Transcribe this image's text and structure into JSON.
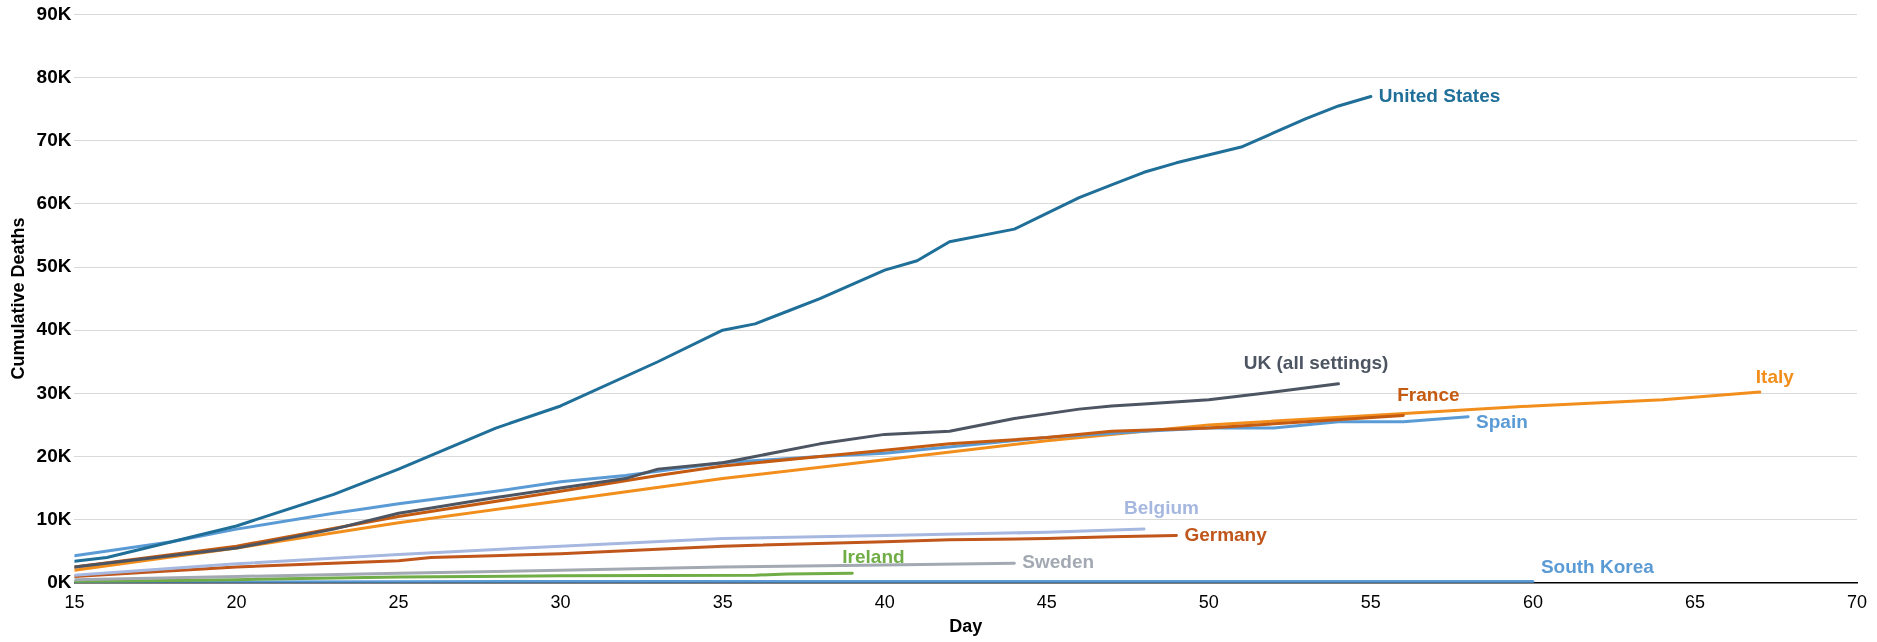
{
  "chart_data": {
    "type": "line",
    "xlabel": "Day",
    "ylabel": "Cumulative Deaths",
    "xlim": [
      15,
      70
    ],
    "xticks": [
      15,
      20,
      25,
      30,
      35,
      40,
      45,
      50,
      55,
      60,
      65,
      70
    ],
    "ylim": [
      0,
      90000
    ],
    "yticks": [
      {
        "value": 0,
        "label": "0K"
      },
      {
        "value": 10000,
        "label": "10K"
      },
      {
        "value": 20000,
        "label": "20K"
      },
      {
        "value": 30000,
        "label": "30K"
      },
      {
        "value": 40000,
        "label": "40K"
      },
      {
        "value": 50000,
        "label": "50K"
      },
      {
        "value": 60000,
        "label": "60K"
      },
      {
        "value": 70000,
        "label": "70K"
      },
      {
        "value": 80000,
        "label": "80K"
      },
      {
        "value": 90000,
        "label": "90K"
      }
    ],
    "grid": "y",
    "legend": false,
    "marker": "none",
    "line_style": "solid",
    "series": [
      {
        "name": "United States",
        "color": "#1f6f99",
        "x": [
          15,
          16,
          18,
          20,
          23,
          25,
          28,
          30,
          33,
          35,
          36,
          37,
          38,
          40,
          41,
          42,
          44,
          45,
          46,
          47,
          48,
          49,
          51,
          53,
          54,
          55
        ],
        "values": [
          3400,
          4000,
          6500,
          9000,
          14000,
          18000,
          24500,
          28000,
          35000,
          40000,
          41000,
          43000,
          45000,
          49500,
          51000,
          54000,
          56000,
          58500,
          61000,
          63000,
          65000,
          66500,
          69000,
          73500,
          75500,
          77000
        ]
      },
      {
        "name": "UK (all settings)",
        "color": "#4d5562",
        "x": [
          15,
          20,
          23,
          25,
          28,
          30,
          32,
          33,
          35,
          36,
          38,
          40,
          42,
          44,
          46,
          47,
          48,
          50,
          52,
          54
        ],
        "values": [
          2500,
          5500,
          8500,
          11000,
          13500,
          15000,
          16500,
          18000,
          19000,
          20000,
          22000,
          23500,
          24000,
          26000,
          27500,
          28000,
          28300,
          29000,
          30200,
          31500
        ]
      },
      {
        "name": "France",
        "color": "#c55a11",
        "x": [
          15,
          20,
          25,
          30,
          33,
          35,
          38,
          40,
          42,
          45,
          47,
          50,
          53,
          56
        ],
        "values": [
          2500,
          5800,
          10500,
          14500,
          17000,
          18500,
          20000,
          21000,
          22000,
          23000,
          24000,
          24500,
          25500,
          26500
        ]
      },
      {
        "name": "Spain",
        "color": "#5b9bd5",
        "x": [
          15,
          18,
          20,
          23,
          25,
          28,
          30,
          32,
          35,
          38,
          40,
          43,
          45,
          48,
          50,
          52,
          54,
          56,
          58
        ],
        "values": [
          4300,
          6500,
          8500,
          11000,
          12500,
          14500,
          16000,
          17000,
          19000,
          20000,
          20500,
          22000,
          23000,
          24000,
          24500,
          24500,
          25500,
          25500,
          26300
        ]
      },
      {
        "name": "Italy",
        "color": "#f28e1c",
        "x": [
          15,
          20,
          25,
          30,
          35,
          40,
          45,
          50,
          55,
          60,
          64,
          67
        ],
        "values": [
          2000,
          5500,
          9500,
          13000,
          16500,
          19500,
          22500,
          25000,
          26500,
          28000,
          29000,
          30200
        ]
      },
      {
        "name": "Belgium",
        "color": "#a6b8e0",
        "x": [
          15,
          20,
          25,
          30,
          35,
          40,
          45,
          48
        ],
        "values": [
          1200,
          3000,
          4500,
          5800,
          7000,
          7500,
          8000,
          8500
        ]
      },
      {
        "name": "Germany",
        "color": "#c0561b",
        "x": [
          15,
          20,
          25,
          26,
          30,
          35,
          40,
          42,
          45,
          47,
          49
        ],
        "values": [
          1000,
          2500,
          3500,
          4000,
          4600,
          5800,
          6500,
          6800,
          7000,
          7300,
          7500
        ]
      },
      {
        "name": "Sweden",
        "color": "#a3a9b2",
        "x": [
          15,
          20,
          25,
          30,
          35,
          40,
          44
        ],
        "values": [
          500,
          1000,
          1500,
          2000,
          2500,
          2800,
          3100
        ]
      },
      {
        "name": "Ireland",
        "color": "#70ad47",
        "x": [
          15,
          20,
          25,
          30,
          36,
          37,
          39
        ],
        "values": [
          200,
          500,
          900,
          1100,
          1200,
          1400,
          1500
        ]
      },
      {
        "name": "South Korea",
        "color": "#5b9bd5",
        "x": [
          15,
          30,
          45,
          60
        ],
        "values": [
          100,
          200,
          200,
          200
        ]
      }
    ]
  }
}
